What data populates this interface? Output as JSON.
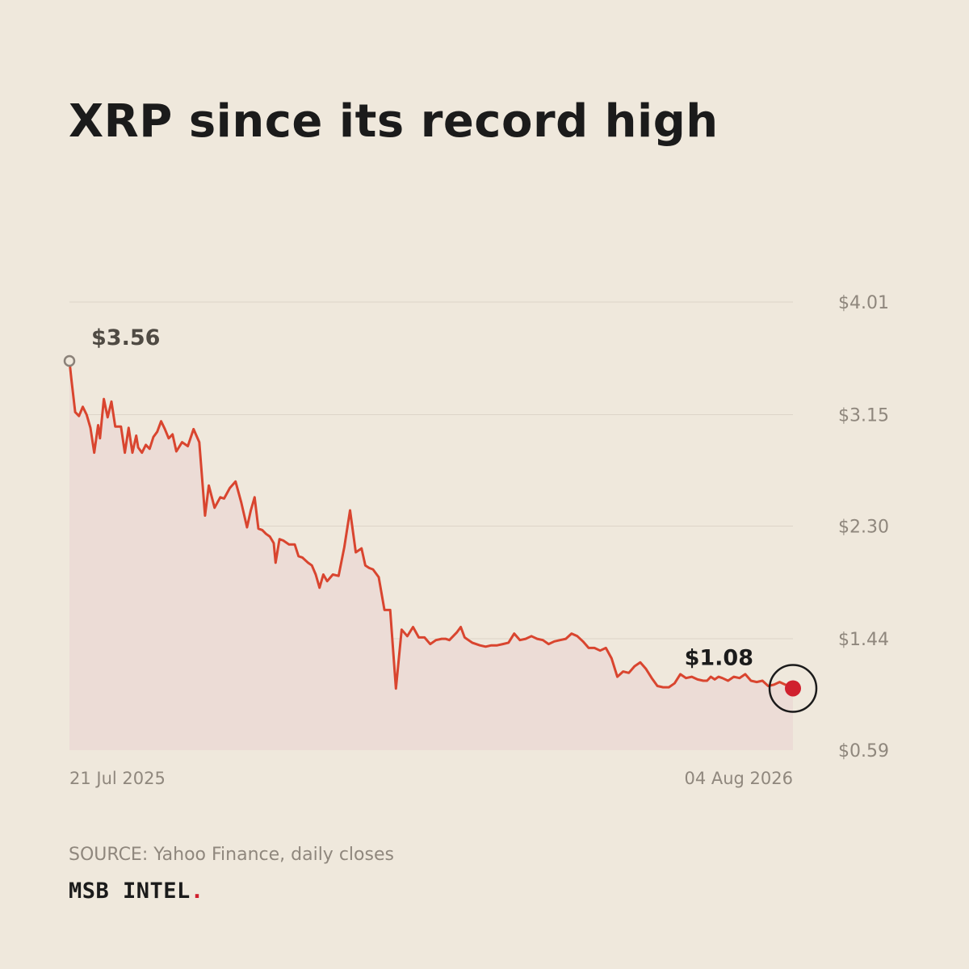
{
  "title": "XRP since its record high",
  "source": "SOURCE: Yahoo Finance, daily closes",
  "brand": {
    "name": "MSB INTEL",
    "dot": "."
  },
  "colors": {
    "background": "#efe8dc",
    "line": "#d9452f",
    "area": "#ecdcd6",
    "grid": "#ddd4c8",
    "endpoint": "#d0202e",
    "start_marker": "#8a8178",
    "muted_text": "#8f877d"
  },
  "chart_data": {
    "type": "line",
    "title": "XRP since its record high",
    "x_range": [
      "2025-07-21",
      "2026-08-04"
    ],
    "x_tick_labels": [
      "21 Jul 2025",
      "04 Aug 2026"
    ],
    "ylim": [
      0.59,
      4.01
    ],
    "y_ticks": [
      {
        "value": 4.01,
        "label": "$4.01"
      },
      {
        "value": 3.15,
        "label": "$3.15"
      },
      {
        "value": 2.3,
        "label": "$2.30"
      },
      {
        "value": 1.44,
        "label": "$1.44"
      },
      {
        "value": 0.59,
        "label": "$0.59"
      }
    ],
    "grid": true,
    "annotations": [
      {
        "label": "$3.56",
        "x": "2025-07-21",
        "y": 3.56,
        "marker": "hollow-circle"
      },
      {
        "label": "$1.08",
        "x": "2026-08-04",
        "y": 1.08,
        "marker": "filled-circle-ringed"
      }
    ],
    "series": [
      {
        "x": [
          "2025-07-21",
          "2025-07-22",
          "2025-07-24",
          "2025-07-26",
          "2025-07-28",
          "2025-07-30",
          "2025-08-01",
          "2025-08-03",
          "2025-08-05",
          "2025-08-06",
          "2025-08-08",
          "2025-08-10",
          "2025-08-12",
          "2025-08-14",
          "2025-08-17",
          "2025-08-19",
          "2025-08-21",
          "2025-08-23",
          "2025-08-25",
          "2025-08-26",
          "2025-08-28",
          "2025-08-30",
          "2025-09-01",
          "2025-09-03",
          "2025-09-05",
          "2025-09-07",
          "2025-09-09",
          "2025-09-11",
          "2025-09-13",
          "2025-09-15",
          "2025-09-18",
          "2025-09-21",
          "2025-09-24",
          "2025-09-27",
          "2025-09-30",
          "2025-10-02",
          "2025-10-05",
          "2025-10-08",
          "2025-10-10",
          "2025-10-13",
          "2025-10-16",
          "2025-10-19",
          "2025-10-22",
          "2025-10-24",
          "2025-10-26",
          "2025-10-28",
          "2025-10-30",
          "2025-11-01",
          "2025-11-03",
          "2025-11-05",
          "2025-11-06",
          "2025-11-08",
          "2025-11-10",
          "2025-11-13",
          "2025-11-16",
          "2025-11-18",
          "2025-11-20",
          "2025-11-23",
          "2025-11-25",
          "2025-11-27",
          "2025-11-29",
          "2025-12-01",
          "2025-12-03",
          "2025-12-06",
          "2025-12-09",
          "2025-12-12",
          "2025-12-15",
          "2025-12-18",
          "2025-12-21",
          "2025-12-23",
          "2025-12-25",
          "2025-12-27",
          "2025-12-30",
          "2026-01-02",
          "2026-01-05",
          "2026-01-08",
          "2026-01-11",
          "2026-01-14",
          "2026-01-17",
          "2026-01-20",
          "2026-01-23",
          "2026-01-26",
          "2026-01-29",
          "2026-02-01",
          "2026-02-03",
          "2026-02-05",
          "2026-02-07",
          "2026-02-09",
          "2026-02-11",
          "2026-02-13",
          "2026-02-15",
          "2026-02-17",
          "2026-02-19",
          "2026-02-21",
          "2026-02-24",
          "2026-02-27",
          "2026-03-02",
          "2026-03-05",
          "2026-03-08",
          "2026-03-11",
          "2026-03-14",
          "2026-03-17",
          "2026-03-20",
          "2026-03-23",
          "2026-03-26",
          "2026-03-29",
          "2026-04-01",
          "2026-04-04",
          "2026-04-07",
          "2026-04-10",
          "2026-04-13",
          "2026-04-16",
          "2026-04-19",
          "2026-04-22",
          "2026-04-25",
          "2026-04-28",
          "2026-05-01",
          "2026-05-04",
          "2026-05-07",
          "2026-05-10",
          "2026-05-13",
          "2026-05-16",
          "2026-05-19",
          "2026-05-22",
          "2026-05-25",
          "2026-05-28",
          "2026-05-31",
          "2026-06-03",
          "2026-06-06",
          "2026-06-09",
          "2026-06-12",
          "2026-06-15",
          "2026-06-18",
          "2026-06-20",
          "2026-06-22",
          "2026-06-24",
          "2026-06-26",
          "2026-06-28",
          "2026-07-01",
          "2026-07-04",
          "2026-07-07",
          "2026-07-10",
          "2026-07-13",
          "2026-07-16",
          "2026-07-19",
          "2026-07-22",
          "2026-07-25",
          "2026-07-28",
          "2026-07-31",
          "2026-08-02",
          "2026-08-04"
        ],
        "y": [
          3.56,
          3.42,
          3.17,
          3.14,
          3.21,
          3.15,
          3.05,
          2.86,
          3.07,
          2.97,
          3.27,
          3.13,
          3.25,
          3.06,
          3.06,
          2.86,
          3.05,
          2.86,
          2.99,
          2.9,
          2.86,
          2.92,
          2.89,
          2.98,
          3.02,
          3.1,
          3.04,
          2.97,
          3.0,
          2.87,
          2.94,
          2.91,
          3.04,
          2.94,
          2.38,
          2.61,
          2.44,
          2.52,
          2.51,
          2.59,
          2.64,
          2.48,
          2.29,
          2.42,
          2.52,
          2.28,
          2.27,
          2.24,
          2.22,
          2.17,
          2.02,
          2.2,
          2.19,
          2.16,
          2.16,
          2.07,
          2.06,
          2.02,
          2.0,
          1.93,
          1.83,
          1.93,
          1.88,
          1.93,
          1.92,
          2.14,
          2.42,
          2.1,
          2.13,
          2.0,
          1.98,
          1.97,
          1.91,
          1.66,
          1.66,
          1.06,
          1.51,
          1.46,
          1.53,
          1.45,
          1.45,
          1.4,
          1.43,
          1.44,
          1.44,
          1.43,
          1.46,
          1.49,
          1.53,
          1.45,
          1.43,
          1.41,
          1.4,
          1.39,
          1.38,
          1.39,
          1.39,
          1.4,
          1.41,
          1.48,
          1.43,
          1.44,
          1.46,
          1.44,
          1.43,
          1.4,
          1.42,
          1.43,
          1.44,
          1.48,
          1.46,
          1.42,
          1.37,
          1.37,
          1.35,
          1.37,
          1.29,
          1.15,
          1.19,
          1.18,
          1.23,
          1.26,
          1.21,
          1.14,
          1.08,
          1.07,
          1.07,
          1.1,
          1.17,
          1.14,
          1.15,
          1.13,
          1.12,
          1.12,
          1.15,
          1.13,
          1.15,
          1.14,
          1.12,
          1.15,
          1.14,
          1.17,
          1.12,
          1.11,
          1.12,
          1.08,
          1.09,
          1.11,
          1.09,
          1.08,
          1.08
        ]
      }
    ]
  }
}
